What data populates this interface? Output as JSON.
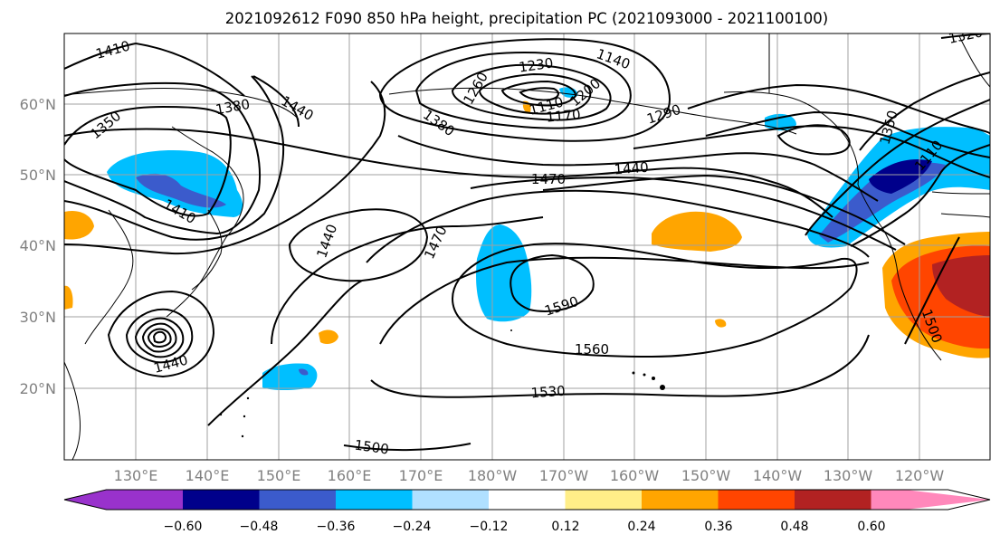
{
  "title": "2021092612 F090 850 hPa height, precipitation PC (2021093000 - 2021100100)",
  "lon_ticks": [
    "130°E",
    "140°E",
    "150°E",
    "160°E",
    "170°E",
    "180°W",
    "170°W",
    "160°W",
    "150°W",
    "140°W",
    "130°W",
    "120°W"
  ],
  "lat_ticks": [
    "60°N",
    "50°N",
    "40°N",
    "30°N",
    "20°N"
  ],
  "contour_labels": [
    "1410",
    "1350",
    "1380",
    "1440",
    "1410",
    "1440",
    "1470",
    "1380",
    "1230",
    "1260",
    "1200",
    "1170",
    "1140",
    "1110",
    "1290",
    "1470",
    "1440",
    "1350",
    "1110",
    "1590",
    "1560",
    "1530",
    "1500",
    "1440",
    "1500",
    "1320"
  ],
  "colorbar": {
    "tick_labels": [
      "−0.60",
      "−0.48",
      "−0.36",
      "−0.24",
      "−0.12",
      "0.12",
      "0.24",
      "0.36",
      "0.48",
      "0.60"
    ],
    "colors": [
      "#9932cc",
      "#00008b",
      "#3b5bcc",
      "#00bfff",
      "#b0e0ff",
      "#ffffff",
      "#ffee88",
      "#ffa500",
      "#ff4500",
      "#b22222",
      "#ff88bb"
    ]
  },
  "palette": {
    "land": "#000000",
    "grid": "#a0a0a0",
    "axis_text": "#808080"
  }
}
